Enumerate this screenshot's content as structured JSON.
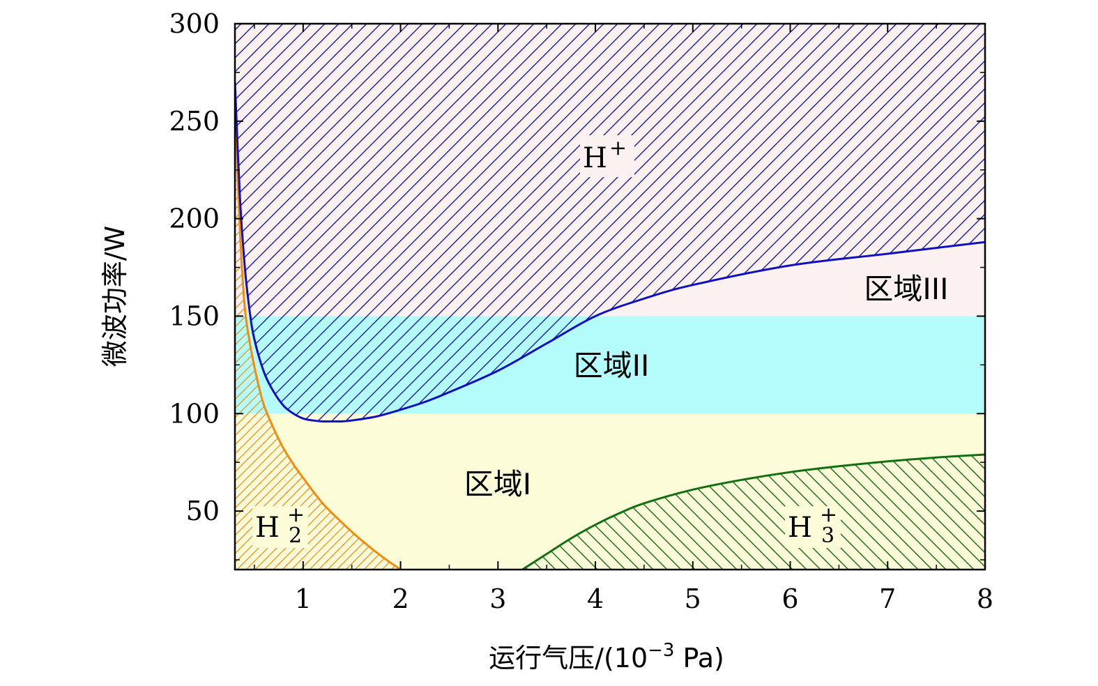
{
  "chart_data": {
    "type": "area",
    "xlabel": "运行气压/(10",
    "xlabel_exp": "−3",
    "xlabel_unit": " Pa)",
    "ylabel": "微波功率/W",
    "xlim": [
      0.3,
      8
    ],
    "ylim": [
      20,
      300
    ],
    "x_ticks": [
      1,
      2,
      3,
      4,
      5,
      6,
      7,
      8
    ],
    "y_ticks": [
      50,
      100,
      150,
      200,
      250,
      300
    ],
    "grid": false,
    "regions": [
      {
        "name": "区域I",
        "y_range": [
          20,
          100
        ],
        "color": "#fcfcd8"
      },
      {
        "name": "区域II",
        "y_range": [
          100,
          150
        ],
        "color": "#b4fcfc"
      },
      {
        "name": "区域III",
        "y_range": [
          150,
          300
        ],
        "color": "#fbf1f0"
      }
    ],
    "ions": [
      {
        "base": "H",
        "sup": "+",
        "sub": ""
      },
      {
        "base": "H",
        "sup": "+",
        "sub": "2"
      },
      {
        "base": "H",
        "sup": "+",
        "sub": "3"
      }
    ],
    "series": [
      {
        "name": "H+",
        "color": "#1010c0",
        "x": [
          0.3,
          0.35,
          0.4,
          0.45,
          0.5,
          0.6,
          0.7,
          0.8,
          0.9,
          1.0,
          1.1,
          1.2,
          1.3,
          1.4,
          1.5,
          1.75,
          2.0,
          2.25,
          2.5,
          3.0,
          3.5,
          4.0,
          4.5,
          5.0,
          6.0,
          7.0,
          8.0
        ],
        "y": [
          270,
          212,
          176,
          153,
          138,
          121,
          111,
          104,
          100,
          97.5,
          96.5,
          96,
          96,
          96,
          96.5,
          98.5,
          102,
          106,
          111,
          122,
          136,
          150,
          159,
          166,
          176,
          182,
          188
        ]
      },
      {
        "name": "H2+",
        "color": "#f08c10",
        "x": [
          0.3,
          0.33,
          0.36,
          0.4,
          0.45,
          0.5,
          0.55,
          0.6,
          0.7,
          0.8,
          0.9,
          1.0,
          1.2,
          1.4,
          1.6,
          1.8,
          2.0
        ],
        "y": [
          258,
          218,
          185,
          155,
          137,
          124,
          113,
          104,
          92,
          82,
          74,
          67,
          54,
          44,
          35,
          27,
          20
        ]
      },
      {
        "name": "H3+",
        "color": "#107010",
        "x": [
          3.25,
          3.5,
          3.75,
          4.0,
          4.25,
          4.5,
          5.0,
          5.5,
          6.0,
          6.5,
          7.0,
          7.5,
          8.0
        ],
        "y": [
          20,
          28,
          36,
          43,
          49,
          54,
          61,
          66,
          70,
          73,
          75.5,
          77.5,
          79
        ]
      }
    ]
  }
}
